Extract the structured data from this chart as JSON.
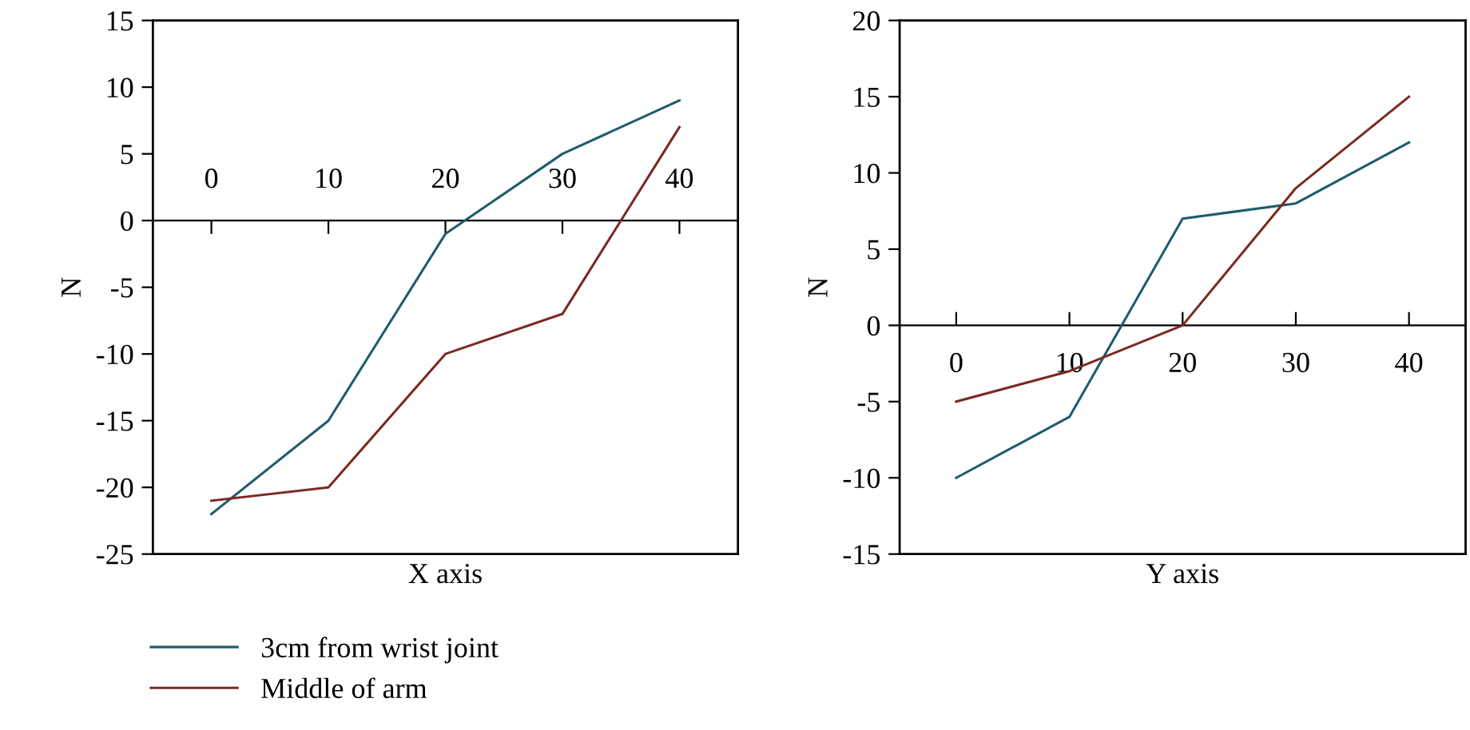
{
  "chart_data": [
    {
      "type": "line",
      "xlabel": "X axis",
      "ylabel": "N",
      "x": [
        0,
        10,
        20,
        30,
        40
      ],
      "xlim": [
        -5,
        45
      ],
      "xticks": [
        0,
        10,
        20,
        30,
        40
      ],
      "ylim": [
        -25,
        15
      ],
      "yticks": [
        -25,
        -20,
        -15,
        -10,
        -5,
        0,
        5,
        10,
        15
      ],
      "grid": false,
      "legend": "bottom",
      "series": [
        {
          "name": "3cm from wrist joint",
          "color": "#1f5c6e",
          "values": [
            -22,
            -15,
            -1,
            5,
            9
          ]
        },
        {
          "name": "Middle of arm",
          "color": "#7b2a22",
          "values": [
            -21,
            -20,
            -10,
            -7,
            7
          ]
        }
      ]
    },
    {
      "type": "line",
      "xlabel": "Y axis",
      "ylabel": "N",
      "x": [
        0,
        10,
        20,
        30,
        40
      ],
      "xlim": [
        -5,
        45
      ],
      "xticks": [
        0,
        10,
        20,
        30,
        40
      ],
      "ylim": [
        -15,
        20
      ],
      "yticks": [
        -15,
        -10,
        -5,
        0,
        5,
        10,
        15,
        20
      ],
      "grid": false,
      "series": [
        {
          "color": "#1f5c6e",
          "values": [
            -10,
            -6,
            7,
            8,
            12
          ]
        },
        {
          "color": "#7b2a22",
          "values": [
            -5,
            -3,
            0,
            9,
            15
          ]
        }
      ]
    }
  ]
}
